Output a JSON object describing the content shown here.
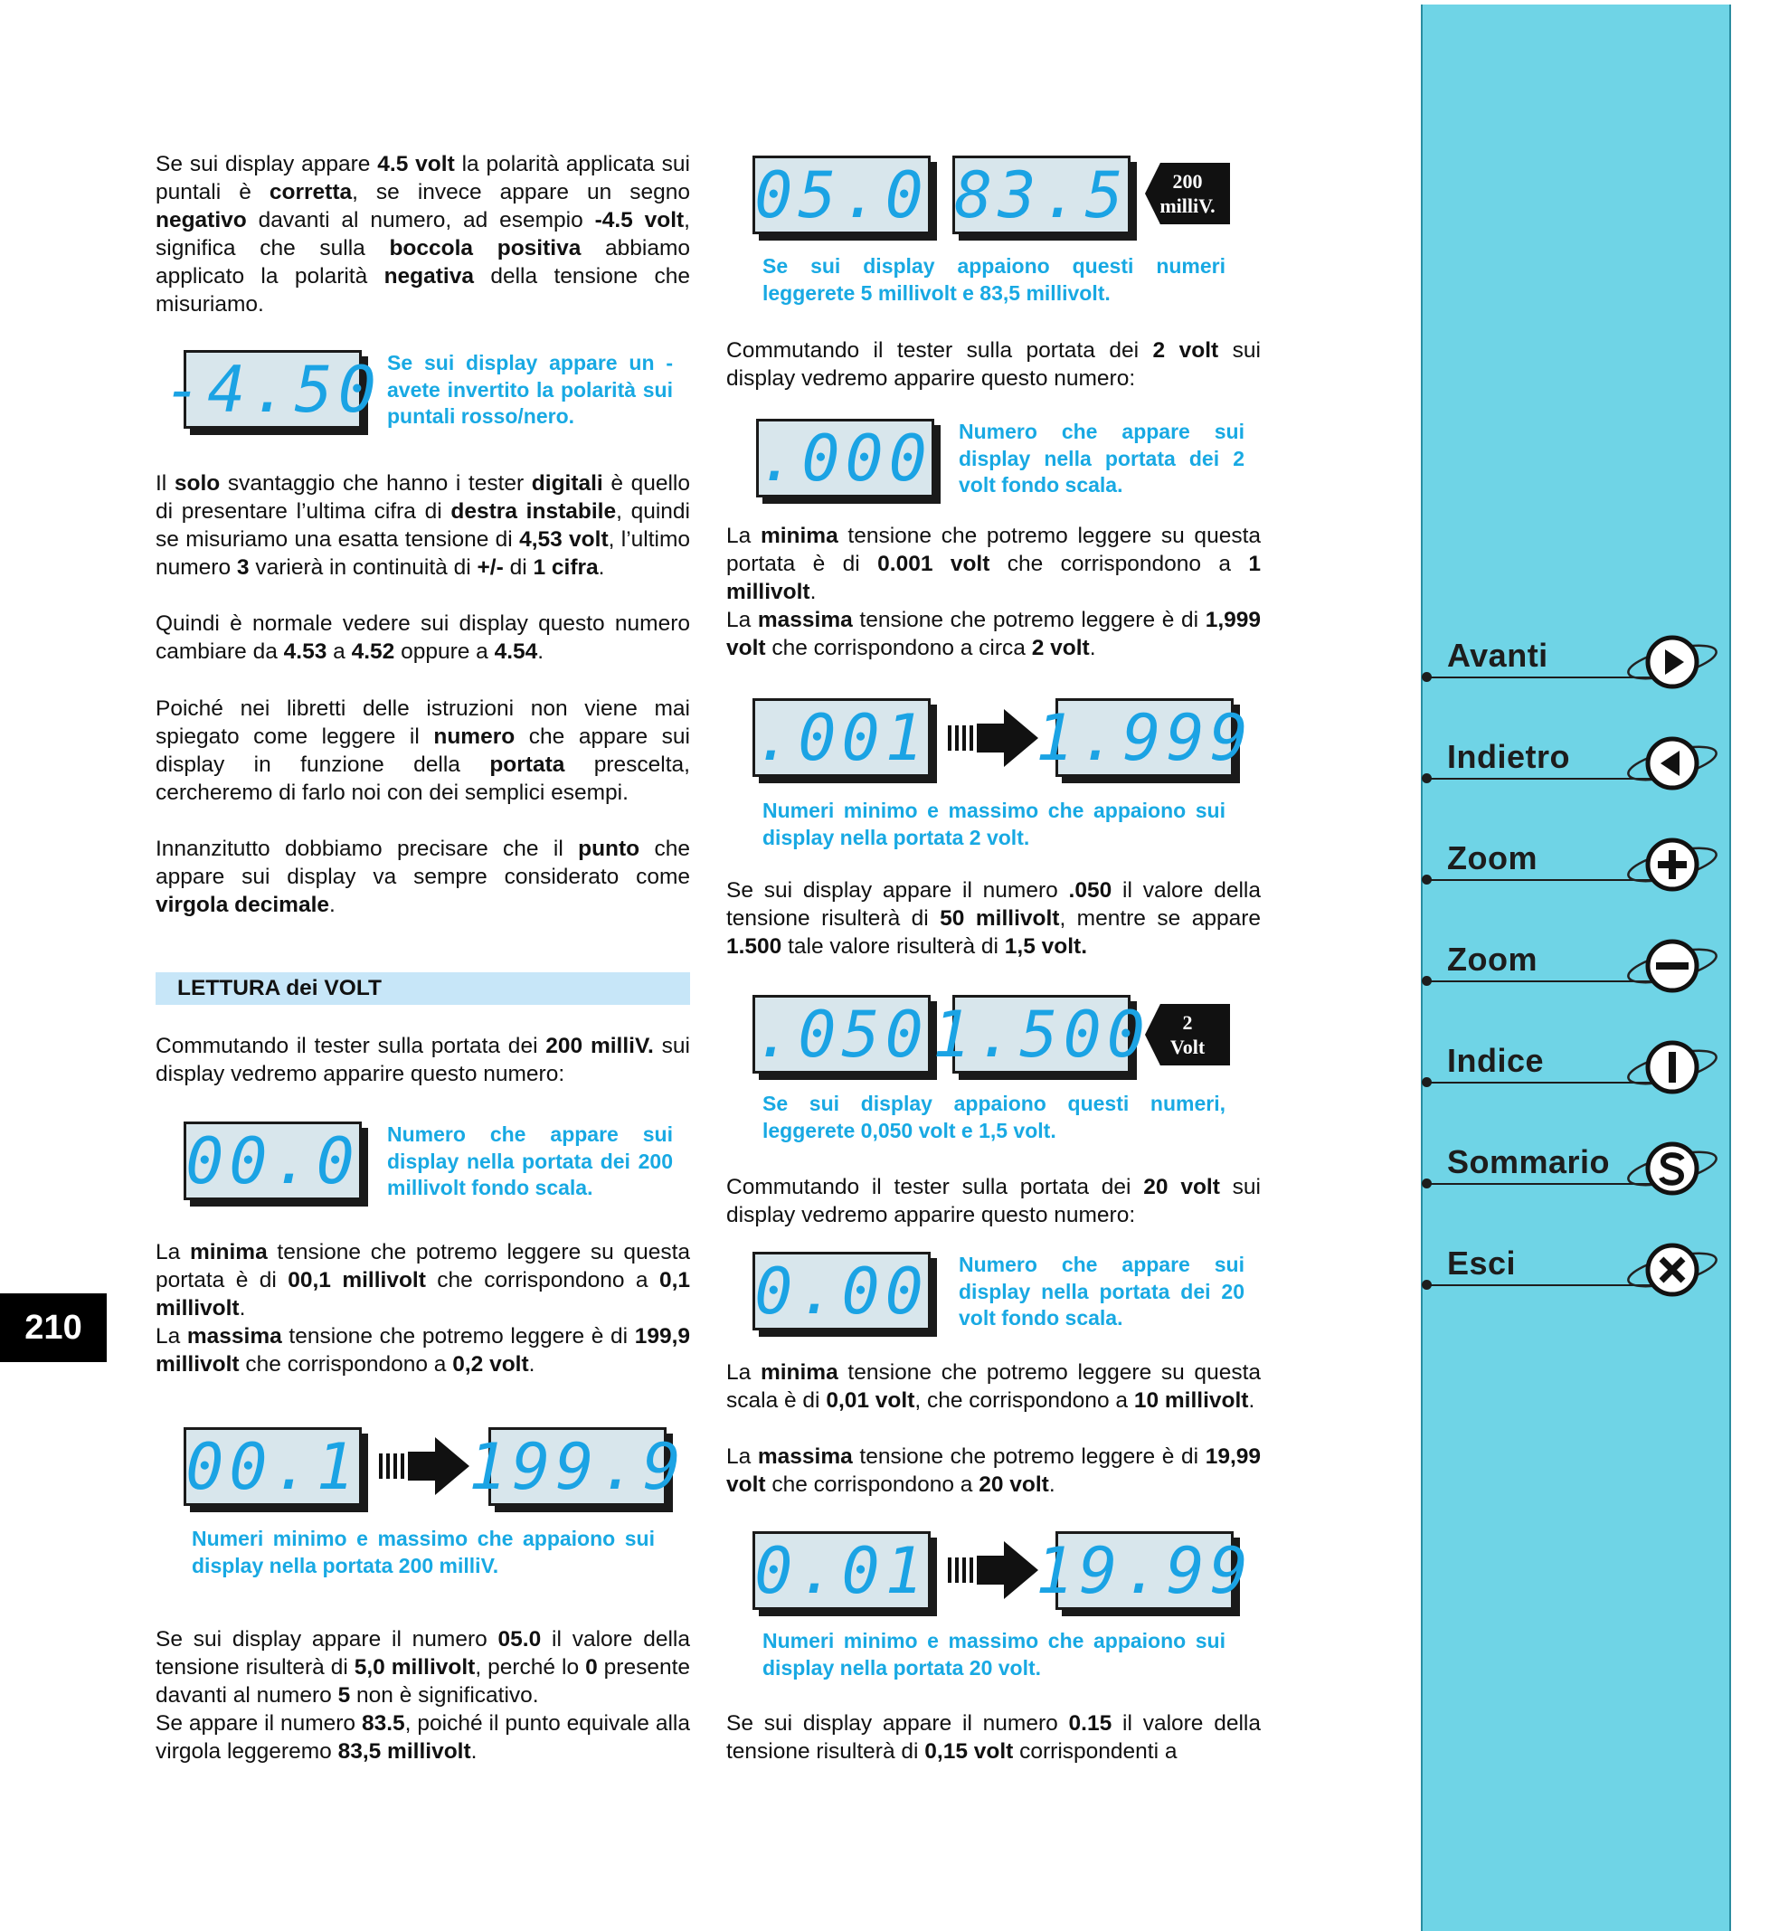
{
  "page_number": "210",
  "left": {
    "p1": [
      "Se sui display appare ",
      "4.5 volt",
      " la polarità applicata sui puntali è ",
      "corretta",
      ", se invece appare un segno ",
      "negativo",
      " davanti al numero, ad esempio ",
      "-4.5 volt",
      ", significa che sulla ",
      "boccola positiva",
      " abbiamo applicato la polarità ",
      "negativa",
      " della tensione che misuriamo."
    ],
    "lcd1": "-4.50",
    "cap1": "Se sui display appare un - avete invertito la polarità sui puntali rosso/nero.",
    "p2": [
      "Il ",
      "solo",
      " svantaggio che hanno i tester ",
      "digitali",
      " è quello di presentare l’ultima cifra di ",
      "destra instabile",
      ", quindi se misuriamo una esatta tensione di ",
      "4,53 volt",
      ", l’ultimo numero ",
      "3",
      " varierà in continuità di ",
      "+/-",
      " di ",
      "1 cifra",
      "."
    ],
    "p3": [
      "Quindi è normale vedere sui display questo numero cambiare da ",
      "4.53",
      " a ",
      "4.52",
      " oppure a ",
      "4.54",
      "."
    ],
    "p4": [
      "Poiché nei libretti delle istruzioni non viene mai spiegato come leggere il ",
      "numero",
      " che appare sui display in funzione della ",
      "portata",
      " prescelta, cercheremo di farlo noi con dei semplici esempi."
    ],
    "p5": [
      "Innanzitutto dobbiamo precisare che il ",
      "punto",
      " che appare sui display va sempre considerato come ",
      "virgola decimale",
      "."
    ],
    "section_title": "LETTURA dei VOLT",
    "p6": [
      "Commutando il tester sulla portata dei ",
      "200 milliV.",
      " sui display vedremo apparire questo numero:"
    ],
    "lcd2": "00.0",
    "cap2": "Numero che appare sui display nella portata dei 200 millivolt fondo scala.",
    "p7": [
      "La ",
      "minima",
      " tensione che potremo leggere su questa portata è di ",
      "00,1 millivolt",
      " che corrispondono a ",
      "0,1 millivolt",
      "."
    ],
    "p8": [
      "La ",
      "massima",
      " tensione che potremo leggere è di ",
      "199,9 millivolt",
      " che corrispondono a ",
      "0,2 volt",
      "."
    ],
    "lcd3a": "00.1",
    "lcd3b": "199.9",
    "cap3": "Numeri minimo e massimo che appaiono sui display nella portata 200 milliV.",
    "p9": [
      "Se sui display appare il numero ",
      "05.0",
      " il valore della tensione risulterà di ",
      "5,0 millivolt",
      ", perché lo ",
      "0",
      " presente davanti al numero ",
      "5",
      " non è significativo."
    ],
    "p10": [
      "Se appare il numero ",
      "83.5",
      ", poiché il punto equivale alla virgola leggeremo ",
      "83,5 millivolt",
      "."
    ]
  },
  "right": {
    "lcd_a1": "05.0",
    "lcd_a2": "83.5",
    "tag_a": [
      "200",
      "milliV."
    ],
    "cap_a": "Se sui display appaiono questi numeri leggerete 5 millivolt e 83,5 millivolt.",
    "p1": [
      "Commutando il tester sulla portata dei ",
      "2 volt",
      " sui display vedremo apparire questo numero:"
    ],
    "lcd_b": ".000",
    "cap_b": "Numero che appare sui display nella portata dei 2 volt fondo scala.",
    "p2": [
      "La ",
      "minima",
      " tensione che potremo leggere su questa portata è di ",
      "0.001 volt",
      " che corrispondono a ",
      "1 millivolt",
      "."
    ],
    "p3": [
      "La ",
      "massima",
      " tensione che potremo leggere è di ",
      "1,999 volt",
      " che corrispondono a circa ",
      "2 volt",
      "."
    ],
    "lcd_c1": ".001",
    "lcd_c2": "1.999",
    "cap_c": "Numeri minimo e massimo che appaiono sui display nella portata 2 volt.",
    "p4": [
      "Se sui display appare il numero ",
      ".050",
      " il valore della tensione risulterà di ",
      "50 millivolt",
      ", mentre se appare ",
      "1.500",
      " tale valore risulterà di ",
      "1,5 volt.",
      ""
    ],
    "lcd_d1": ".050",
    "lcd_d2": "1.500",
    "tag_d": [
      "2",
      "Volt"
    ],
    "cap_d": "Se sui display appaiono questi numeri, leggerete 0,050 volt e 1,5 volt.",
    "p5": [
      "Commutando il tester sulla portata dei ",
      "20 volt",
      " sui display vedremo apparire questo numero:"
    ],
    "lcd_e": "0.00",
    "cap_e": "Numero che appare sui display nella portata dei 20 volt fondo scala.",
    "p6": [
      "La ",
      "minima",
      " tensione che potremo leggere su questa scala è di ",
      "0,01 volt",
      ", che corrispondono a ",
      "10 millivolt",
      "."
    ],
    "p7": [
      "La ",
      "massima",
      " tensione che potremo leggere è di ",
      "19,99 volt",
      " che corrispondono a ",
      "20 volt",
      "."
    ],
    "lcd_f1": "0.01",
    "lcd_f2": "19.99",
    "cap_f": "Numeri minimo e massimo che appaiono sui display nella portata 20 volt.",
    "p8": [
      "Se sui display appare il numero ",
      "0.15",
      " il valore della tensione risulterà di ",
      "0,15 volt",
      " corrispondenti a"
    ]
  },
  "nav": [
    {
      "label": "Avanti",
      "icon": "arrow-right-icon"
    },
    {
      "label": "Indietro",
      "icon": "arrow-left-icon"
    },
    {
      "label": "Zoom",
      "icon": "zoom-in-icon"
    },
    {
      "label": "Zoom",
      "icon": "zoom-out-icon"
    },
    {
      "label": "Indice",
      "icon": "index-icon"
    },
    {
      "label": "Sommario",
      "icon": "summary-icon"
    },
    {
      "label": "Esci",
      "icon": "exit-icon"
    }
  ],
  "colors": {
    "accent": "#18a9e3",
    "sidebar": "#6fd4e6",
    "section_bg": "#c7e6f8"
  }
}
